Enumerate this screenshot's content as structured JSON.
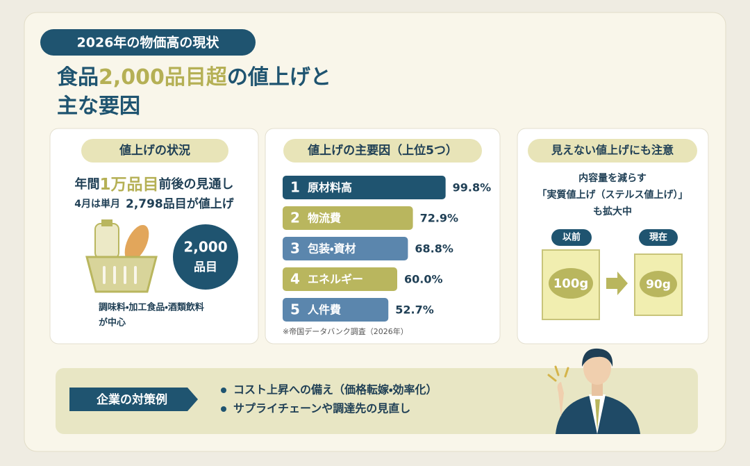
{
  "header": {
    "badge": "2026年の物価高の現状",
    "title_parts": [
      "食品",
      "2,000品目超",
      "の値上げと"
    ],
    "title_line2": "主な要因"
  },
  "panel_status": {
    "title": "値上げの状況",
    "headline_parts": [
      "年間",
      "1万品目",
      "前後",
      "の見通し"
    ],
    "subline_parts": [
      "4月は単月",
      "2,798品目が値上げ"
    ],
    "circle": [
      "2,000",
      "品目"
    ],
    "note": [
      "調味料・加工食品・酒類飲料",
      "が中心"
    ]
  },
  "chart_data": {
    "type": "bar",
    "title": "値上げの主要因（上位5つ）",
    "ranks": [
      1,
      2,
      3,
      4,
      5
    ],
    "categories": [
      "原材料高",
      "物流費",
      "包装・資材",
      "エネルギー",
      "人件費"
    ],
    "values": [
      99.8,
      72.9,
      68.8,
      60.0,
      52.7
    ],
    "value_labels": [
      "99.8%",
      "72.9%",
      "68.8%",
      "60.0%",
      "52.7%"
    ],
    "colors": [
      "#1f5470",
      "#b9b65e",
      "#5b86ad",
      "#b9b65e",
      "#5b86ad"
    ],
    "source": "※帝国データバンク調査（2026年）"
  },
  "panel_hidden": {
    "title": "見えない値上げにも注意",
    "lines": [
      "内容量を減らす",
      "「実質値上げ（ステルス値上げ）」",
      "も拡大中"
    ],
    "before": {
      "label": "以前",
      "amount": "100g"
    },
    "after": {
      "label": "現在",
      "amount": "90g"
    }
  },
  "measures": {
    "badge": "企業の対策例",
    "items": [
      "コスト上昇への備え（価格転嫁・効率化）",
      "サプライチェーンや調達先の見直し"
    ]
  }
}
